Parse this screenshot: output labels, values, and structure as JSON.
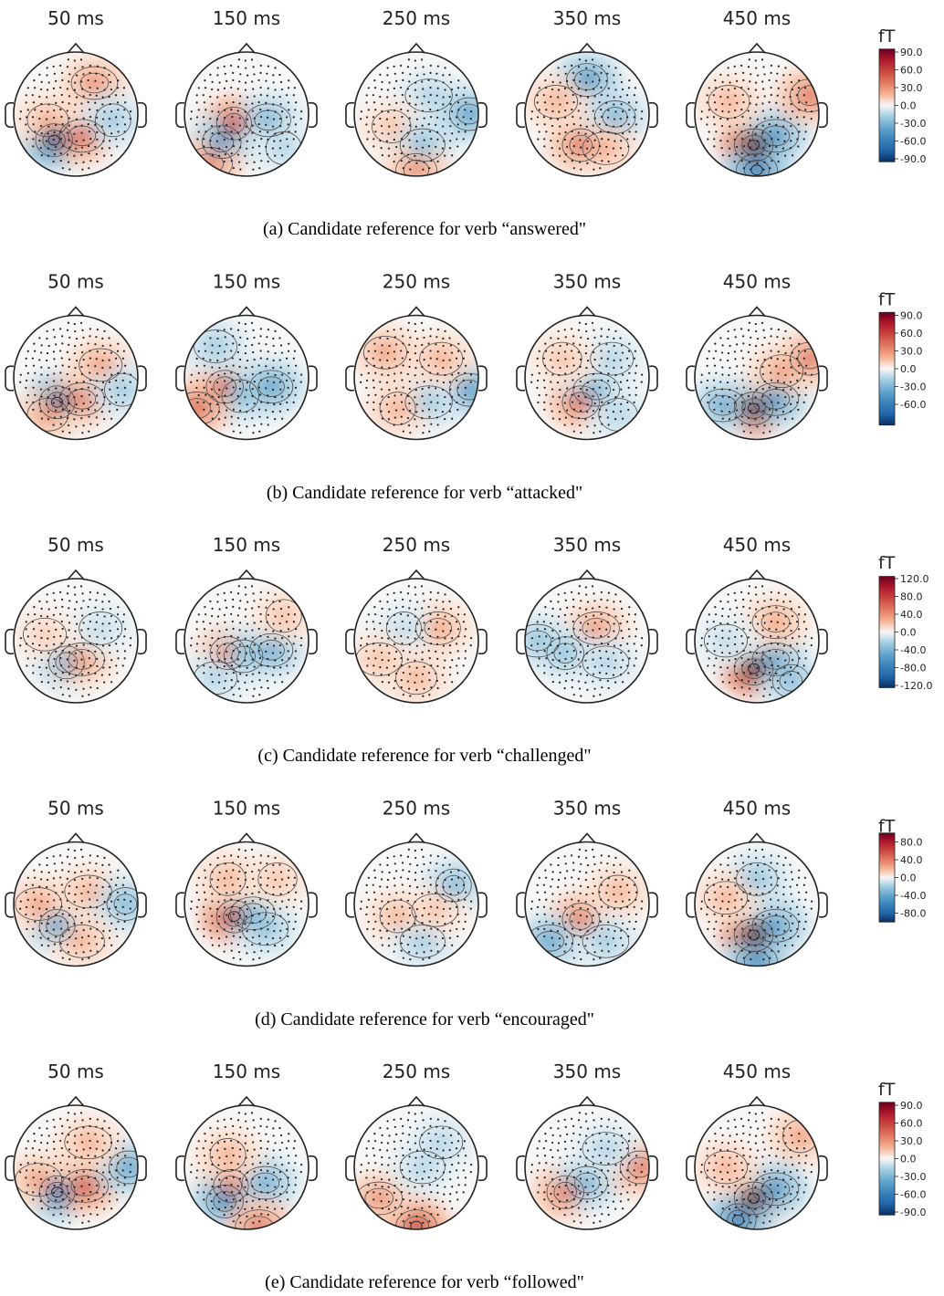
{
  "chart_data": [
    {
      "type": "heatmap",
      "panel": "a",
      "caption": "(a) Candidate reference for verb “answered\"",
      "timepoints": [
        "50 ms",
        "150 ms",
        "250 ms",
        "350 ms",
        "450 ms"
      ],
      "colorbar": {
        "unit": "fT",
        "ticks": [
          "90.0",
          "60.0",
          "30.0",
          "0.0",
          "-30.0",
          "-60.0",
          "-90.0"
        ],
        "range": [
          -95,
          95
        ]
      },
      "blobs": [
        [
          {
            "x": -0.35,
            "y": 0.42,
            "v": -85
          },
          {
            "x": 0.1,
            "y": 0.35,
            "v": 45
          },
          {
            "x": 0.3,
            "y": -0.5,
            "v": 30
          },
          {
            "x": -0.45,
            "y": 0.1,
            "v": 20
          },
          {
            "x": 0.6,
            "y": 0.1,
            "v": -20
          }
        ],
        [
          {
            "x": -0.2,
            "y": 0.15,
            "v": 55
          },
          {
            "x": -0.4,
            "y": 0.45,
            "v": -40
          },
          {
            "x": 0.35,
            "y": 0.1,
            "v": -30
          },
          {
            "x": 0.6,
            "y": 0.55,
            "v": -15
          },
          {
            "x": -0.6,
            "y": 0.8,
            "v": 35
          }
        ],
        [
          {
            "x": 0.2,
            "y": -0.3,
            "v": -15
          },
          {
            "x": -0.4,
            "y": 0.2,
            "v": 15
          },
          {
            "x": 0.85,
            "y": 0.0,
            "v": -40
          },
          {
            "x": 0.1,
            "y": 0.5,
            "v": -25
          },
          {
            "x": 0.0,
            "y": 0.9,
            "v": 30
          }
        ],
        [
          {
            "x": 0.0,
            "y": -0.55,
            "v": -45
          },
          {
            "x": -0.1,
            "y": 0.5,
            "v": 40
          },
          {
            "x": 0.45,
            "y": 0.05,
            "v": -30
          },
          {
            "x": -0.5,
            "y": -0.2,
            "v": 20
          },
          {
            "x": 0.3,
            "y": 0.55,
            "v": 20
          }
        ],
        [
          {
            "x": -0.05,
            "y": 0.5,
            "v": 95
          },
          {
            "x": 0.3,
            "y": 0.35,
            "v": -45
          },
          {
            "x": 0.0,
            "y": 0.9,
            "v": -60
          },
          {
            "x": 0.85,
            "y": -0.3,
            "v": 40
          },
          {
            "x": -0.45,
            "y": -0.2,
            "v": 20
          }
        ]
      ]
    },
    {
      "type": "heatmap",
      "panel": "b",
      "caption": "(b) Candidate reference for verb “attacked\"",
      "timepoints": [
        "50 ms",
        "150 ms",
        "250 ms",
        "350 ms",
        "450 ms"
      ],
      "colorbar": {
        "unit": "fT",
        "ticks": [
          "90.0",
          "60.0",
          "30.0",
          "0.0",
          "-30.0",
          "-60.0"
        ],
        "range": [
          -95,
          95
        ]
      },
      "blobs": [
        [
          {
            "x": -0.3,
            "y": 0.4,
            "v": -80
          },
          {
            "x": 0.1,
            "y": 0.35,
            "v": 35
          },
          {
            "x": -0.45,
            "y": 0.6,
            "v": 25
          },
          {
            "x": 0.4,
            "y": -0.2,
            "v": 25
          },
          {
            "x": 0.75,
            "y": 0.2,
            "v": -20
          }
        ],
        [
          {
            "x": -0.35,
            "y": 0.15,
            "v": 45
          },
          {
            "x": -0.1,
            "y": 0.3,
            "v": -25
          },
          {
            "x": 0.4,
            "y": 0.15,
            "v": -40
          },
          {
            "x": -0.8,
            "y": 0.5,
            "v": 45
          },
          {
            "x": -0.5,
            "y": -0.5,
            "v": -20
          }
        ],
        [
          {
            "x": -0.5,
            "y": -0.4,
            "v": 25
          },
          {
            "x": 0.85,
            "y": 0.2,
            "v": -45
          },
          {
            "x": 0.2,
            "y": 0.4,
            "v": -20
          },
          {
            "x": -0.3,
            "y": 0.5,
            "v": 20
          },
          {
            "x": 0.4,
            "y": -0.3,
            "v": 20
          }
        ],
        [
          {
            "x": -0.1,
            "y": 0.4,
            "v": 45
          },
          {
            "x": 0.15,
            "y": 0.2,
            "v": -30
          },
          {
            "x": 0.4,
            "y": -0.3,
            "v": -15
          },
          {
            "x": -0.4,
            "y": -0.3,
            "v": 15
          },
          {
            "x": 0.5,
            "y": 0.6,
            "v": -15
          }
        ],
        [
          {
            "x": -0.05,
            "y": 0.5,
            "v": 95
          },
          {
            "x": 0.3,
            "y": 0.35,
            "v": -45
          },
          {
            "x": -0.55,
            "y": 0.45,
            "v": -35
          },
          {
            "x": 0.85,
            "y": -0.3,
            "v": 40
          },
          {
            "x": 0.4,
            "y": -0.1,
            "v": 25
          }
        ]
      ]
    },
    {
      "type": "heatmap",
      "panel": "c",
      "caption": "(c) Candidate reference for verb “challenged\"",
      "timepoints": [
        "50 ms",
        "150 ms",
        "250 ms",
        "350 ms",
        "450 ms"
      ],
      "colorbar": {
        "unit": "fT",
        "ticks": [
          "120.0",
          "80.0",
          "40.0",
          "0.0",
          "-40.0",
          "-80.0",
          "-120.0"
        ],
        "range": [
          -125,
          125
        ]
      },
      "blobs": [
        [
          {
            "x": -0.15,
            "y": 0.35,
            "v": -45
          },
          {
            "x": 0.1,
            "y": 0.3,
            "v": 35
          },
          {
            "x": 0.4,
            "y": -0.2,
            "v": -15
          },
          {
            "x": -0.5,
            "y": -0.1,
            "v": 15
          }
        ],
        [
          {
            "x": -0.3,
            "y": 0.2,
            "v": 45
          },
          {
            "x": -0.05,
            "y": 0.25,
            "v": -30
          },
          {
            "x": 0.4,
            "y": 0.15,
            "v": -45
          },
          {
            "x": 0.6,
            "y": -0.4,
            "v": 20
          },
          {
            "x": -0.5,
            "y": 0.6,
            "v": -20
          }
        ],
        [
          {
            "x": 0.35,
            "y": -0.2,
            "v": 30
          },
          {
            "x": -0.2,
            "y": -0.2,
            "v": -15
          },
          {
            "x": 0.0,
            "y": 0.6,
            "v": 25
          },
          {
            "x": -0.6,
            "y": 0.3,
            "v": 20
          }
        ],
        [
          {
            "x": 0.15,
            "y": -0.2,
            "v": 35
          },
          {
            "x": -0.35,
            "y": 0.2,
            "v": -30
          },
          {
            "x": 0.3,
            "y": 0.35,
            "v": -20
          },
          {
            "x": -0.8,
            "y": 0.0,
            "v": -30
          }
        ],
        [
          {
            "x": -0.05,
            "y": 0.45,
            "v": 125
          },
          {
            "x": 0.3,
            "y": 0.3,
            "v": -50
          },
          {
            "x": 0.55,
            "y": 0.65,
            "v": -35
          },
          {
            "x": 0.3,
            "y": -0.3,
            "v": 30
          },
          {
            "x": -0.5,
            "y": 0.0,
            "v": -15
          }
        ]
      ]
    },
    {
      "type": "heatmap",
      "panel": "d",
      "caption": "(d) Candidate reference for verb “encouraged\"",
      "timepoints": [
        "50 ms",
        "150 ms",
        "250 ms",
        "350 ms",
        "450 ms"
      ],
      "colorbar": {
        "unit": "fT",
        "ticks": [
          "80.0",
          "40.0",
          "0.0",
          "-40.0",
          "-80.0"
        ],
        "range": [
          -100,
          100
        ]
      },
      "blobs": [
        [
          {
            "x": -0.3,
            "y": 0.35,
            "v": -40
          },
          {
            "x": -0.6,
            "y": 0.0,
            "v": 25
          },
          {
            "x": 0.2,
            "y": -0.2,
            "v": 20
          },
          {
            "x": 0.8,
            "y": 0.0,
            "v": -30
          },
          {
            "x": 0.1,
            "y": 0.6,
            "v": 20
          }
        ],
        [
          {
            "x": -0.2,
            "y": 0.2,
            "v": 80
          },
          {
            "x": 0.1,
            "y": 0.15,
            "v": -30
          },
          {
            "x": -0.3,
            "y": -0.4,
            "v": 20
          },
          {
            "x": 0.3,
            "y": 0.4,
            "v": -25
          },
          {
            "x": 0.5,
            "y": -0.4,
            "v": 15
          }
        ],
        [
          {
            "x": 0.6,
            "y": -0.3,
            "v": -30
          },
          {
            "x": -0.3,
            "y": 0.2,
            "v": 20
          },
          {
            "x": 0.1,
            "y": 0.6,
            "v": -20
          },
          {
            "x": 0.3,
            "y": 0.1,
            "v": 15
          }
        ],
        [
          {
            "x": -0.1,
            "y": 0.25,
            "v": 40
          },
          {
            "x": -0.6,
            "y": 0.6,
            "v": -40
          },
          {
            "x": 0.5,
            "y": -0.2,
            "v": 20
          },
          {
            "x": 0.3,
            "y": 0.6,
            "v": -20
          }
        ],
        [
          {
            "x": -0.05,
            "y": 0.5,
            "v": 100
          },
          {
            "x": 0.3,
            "y": 0.35,
            "v": -45
          },
          {
            "x": 0.0,
            "y": 0.92,
            "v": -55
          },
          {
            "x": 0.0,
            "y": -0.4,
            "v": -25
          },
          {
            "x": -0.5,
            "y": -0.1,
            "v": 20
          }
        ]
      ]
    },
    {
      "type": "heatmap",
      "panel": "e",
      "caption": "(e) Candidate reference for verb “followed\"",
      "timepoints": [
        "50 ms",
        "150 ms",
        "250 ms",
        "350 ms",
        "450 ms"
      ],
      "colorbar": {
        "unit": "fT",
        "ticks": [
          "90.0",
          "60.0",
          "30.0",
          "0.0",
          "-30.0",
          "-60.0",
          "-90.0"
        ],
        "range": [
          -95,
          95
        ]
      },
      "blobs": [
        [
          {
            "x": -0.3,
            "y": 0.4,
            "v": -65
          },
          {
            "x": 0.15,
            "y": 0.3,
            "v": 50
          },
          {
            "x": -0.6,
            "y": 0.2,
            "v": 25
          },
          {
            "x": 0.85,
            "y": 0.0,
            "v": -40
          },
          {
            "x": 0.2,
            "y": -0.4,
            "v": 20
          }
        ],
        [
          {
            "x": -0.25,
            "y": 0.3,
            "v": 35
          },
          {
            "x": -0.35,
            "y": 0.55,
            "v": -50
          },
          {
            "x": 0.3,
            "y": 0.25,
            "v": -35
          },
          {
            "x": 0.2,
            "y": 0.95,
            "v": 40
          },
          {
            "x": -0.3,
            "y": -0.2,
            "v": 20
          }
        ],
        [
          {
            "x": 0.0,
            "y": 0.95,
            "v": 60
          },
          {
            "x": -0.6,
            "y": 0.5,
            "v": 30
          },
          {
            "x": 0.1,
            "y": 0.0,
            "v": -15
          },
          {
            "x": 0.4,
            "y": -0.4,
            "v": -15
          }
        ],
        [
          {
            "x": -0.35,
            "y": 0.4,
            "v": 40
          },
          {
            "x": 0.0,
            "y": 0.25,
            "v": -30
          },
          {
            "x": 0.85,
            "y": 0.0,
            "v": 40
          },
          {
            "x": 0.3,
            "y": -0.3,
            "v": -15
          }
        ],
        [
          {
            "x": -0.05,
            "y": 0.5,
            "v": 95
          },
          {
            "x": 0.3,
            "y": 0.35,
            "v": -45
          },
          {
            "x": -0.3,
            "y": 0.85,
            "v": -60
          },
          {
            "x": 0.7,
            "y": -0.5,
            "v": 25
          },
          {
            "x": -0.5,
            "y": 0.0,
            "v": 20
          }
        ]
      ]
    }
  ]
}
